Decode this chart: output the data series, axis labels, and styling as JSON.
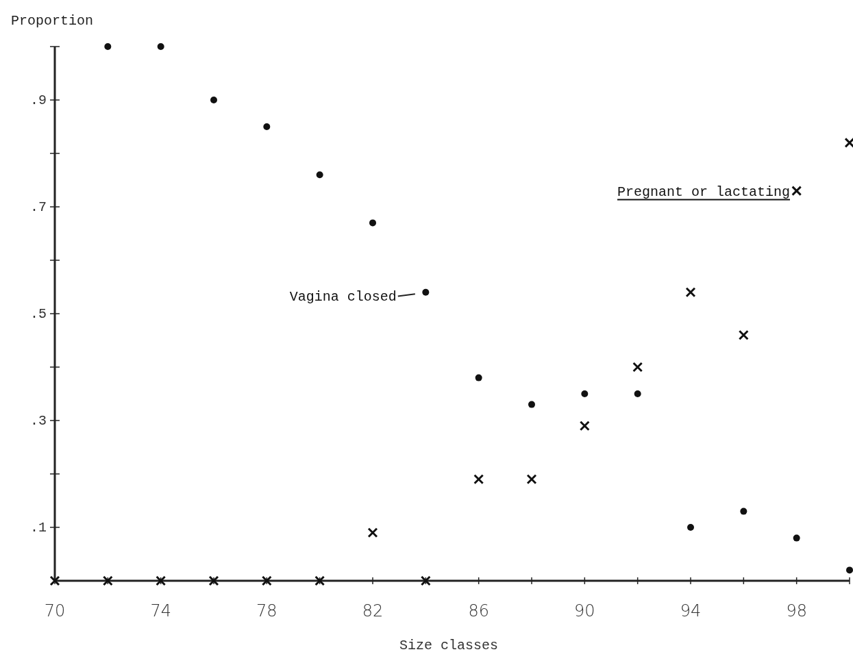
{
  "chart_data": {
    "type": "scatter",
    "xlabel": "Size classes",
    "ylabel": "Proportion",
    "xlim": [
      70,
      100
    ],
    "ylim": [
      0,
      1.0
    ],
    "xticks": [
      70,
      {
        "value": 72,
        "label": null
      },
      74,
      {
        "value": 76,
        "label": null
      },
      78,
      {
        "value": 80,
        "label": null
      },
      82,
      {
        "value": 84,
        "label": null
      },
      86,
      {
        "value": 88,
        "label": null
      },
      90,
      {
        "value": 92,
        "label": null
      },
      94,
      {
        "value": 96,
        "label": null
      },
      98,
      {
        "value": 100,
        "label": null
      }
    ],
    "yticks": [
      {
        "value": 0.1,
        "label": ".1"
      },
      {
        "value": 0.2,
        "label": null
      },
      {
        "value": 0.3,
        "label": ".3"
      },
      {
        "value": 0.4,
        "label": null
      },
      {
        "value": 0.5,
        "label": ".5"
      },
      {
        "value": 0.6,
        "label": null
      },
      {
        "value": 0.7,
        "label": ".7"
      },
      {
        "value": 0.8,
        "label": null
      },
      {
        "value": 0.9,
        "label": ".9"
      },
      {
        "value": 1.0,
        "label": null
      }
    ],
    "grid": false,
    "series": [
      {
        "name": "Vagina closed",
        "color": "#111111",
        "marker": "circle",
        "x": [
          72,
          74,
          76,
          78,
          80,
          82,
          84,
          86,
          88,
          90,
          92,
          94,
          96,
          98,
          100
        ],
        "values": [
          1.0,
          1.0,
          0.9,
          0.85,
          0.76,
          0.67,
          0.54,
          0.38,
          0.33,
          0.35,
          0.35,
          0.1,
          0.13,
          0.08,
          0.02
        ]
      },
      {
        "name": "Pregnant or lactating",
        "color": "#111111",
        "marker": "cross",
        "x": [
          70,
          72,
          74,
          76,
          78,
          80,
          82,
          84,
          86,
          88,
          90,
          92,
          94,
          96,
          98,
          100
        ],
        "values": [
          0,
          0,
          0,
          0,
          0,
          0,
          0.09,
          0,
          0.19,
          0.19,
          0.29,
          0.4,
          0.54,
          0.46,
          0.73,
          0.82
        ]
      }
    ]
  }
}
